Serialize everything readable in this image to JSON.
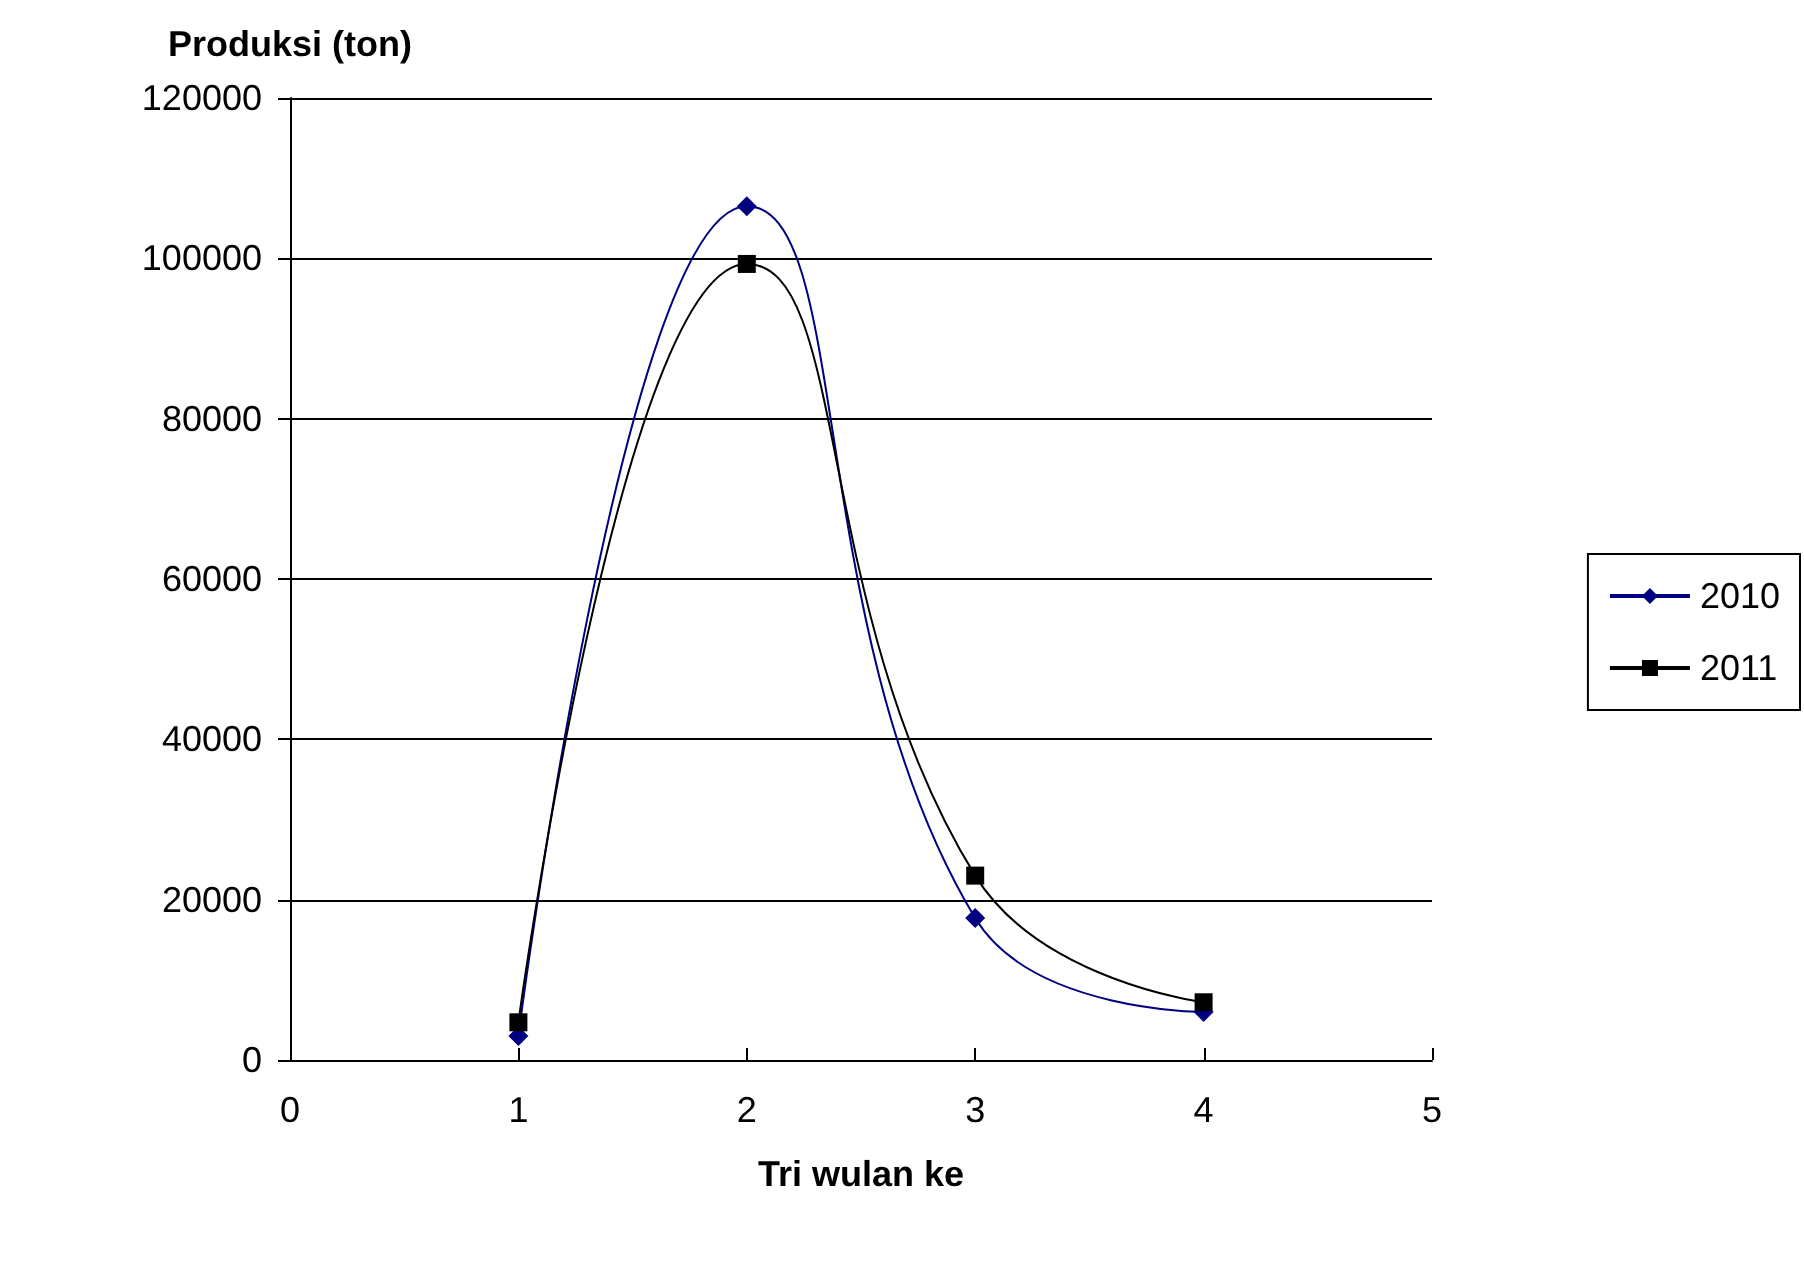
{
  "chart_data": {
    "type": "line",
    "xlabel": "Tri wulan ke",
    "ylabel": "Produksi (ton)",
    "x": [
      1,
      2,
      3,
      4
    ],
    "series": [
      {
        "name": "2010",
        "color": "#000080",
        "marker": "diamond",
        "values": [
          3000,
          106500,
          17700,
          6000
        ]
      },
      {
        "name": "2011",
        "color": "#000000",
        "marker": "square",
        "values": [
          4700,
          99300,
          23000,
          7200
        ]
      }
    ],
    "xlim": [
      0,
      5
    ],
    "xticks": [
      0,
      1,
      2,
      3,
      4,
      5
    ],
    "ylim": [
      0,
      120000
    ],
    "yticks": [
      0,
      20000,
      40000,
      60000,
      80000,
      100000,
      120000
    ],
    "grid": "y",
    "legend": "right"
  }
}
